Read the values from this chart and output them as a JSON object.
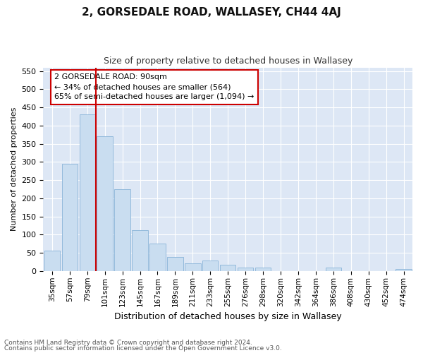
{
  "title": "2, GORSEDALE ROAD, WALLASEY, CH44 4AJ",
  "subtitle": "Size of property relative to detached houses in Wallasey",
  "xlabel": "Distribution of detached houses by size in Wallasey",
  "ylabel": "Number of detached properties",
  "footnote1": "Contains HM Land Registry data © Crown copyright and database right 2024.",
  "footnote2": "Contains public sector information licensed under the Open Government Licence v3.0.",
  "annotation_title": "2 GORSEDALE ROAD: 90sqm",
  "annotation_line1": "← 34% of detached houses are smaller (564)",
  "annotation_line2": "65% of semi-detached houses are larger (1,094) →",
  "bar_color": "#c9ddf0",
  "bar_edge_color": "#8ab4d8",
  "vline_color": "#cc0000",
  "annotation_box_color": "#cc0000",
  "categories": [
    "35sqm",
    "57sqm",
    "79sqm",
    "101sqm",
    "123sqm",
    "145sqm",
    "167sqm",
    "189sqm",
    "211sqm",
    "233sqm",
    "255sqm",
    "276sqm",
    "298sqm",
    "320sqm",
    "342sqm",
    "364sqm",
    "386sqm",
    "408sqm",
    "430sqm",
    "452sqm",
    "474sqm"
  ],
  "values": [
    57,
    295,
    430,
    370,
    225,
    113,
    75,
    38,
    21,
    29,
    17,
    9,
    9,
    0,
    0,
    0,
    9,
    0,
    0,
    0,
    5
  ],
  "ylim": [
    0,
    560
  ],
  "yticks": [
    0,
    50,
    100,
    150,
    200,
    250,
    300,
    350,
    400,
    450,
    500,
    550
  ],
  "vline_position": 3.0,
  "fig_bg_color": "#ffffff",
  "plot_bg_color": "#dde7f5",
  "grid_color": "#ffffff"
}
